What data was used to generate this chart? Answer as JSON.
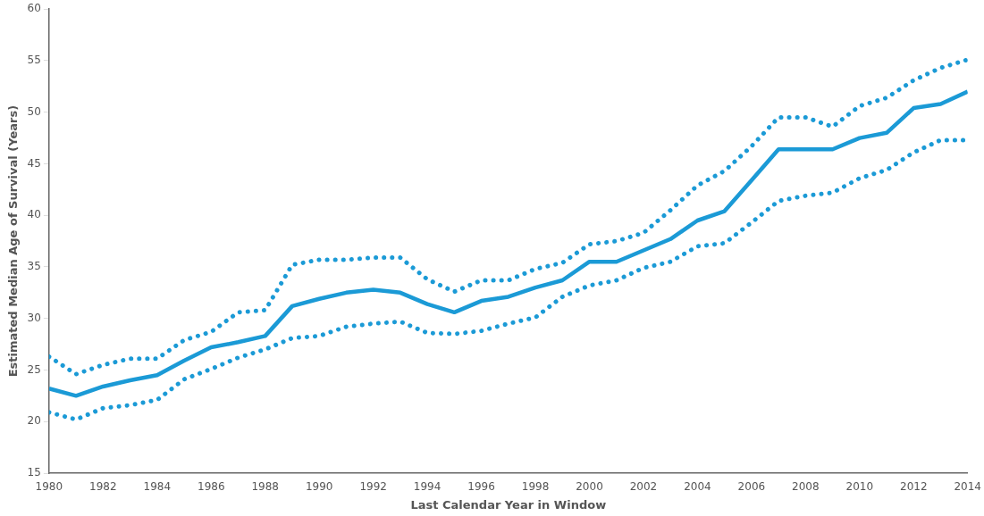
{
  "chart_data": {
    "type": "line",
    "xlabel": "Last Calendar Year in Window",
    "ylabel": "Estimated Median Age of Survival (Years)",
    "x": [
      1980,
      1981,
      1982,
      1983,
      1984,
      1985,
      1986,
      1987,
      1988,
      1989,
      1990,
      1991,
      1992,
      1993,
      1994,
      1995,
      1996,
      1997,
      1998,
      1999,
      2000,
      2001,
      2002,
      2003,
      2004,
      2005,
      2006,
      2007,
      2008,
      2009,
      2010,
      2011,
      2012,
      2013,
      2014
    ],
    "xlim": [
      1980,
      2014
    ],
    "xticks": [
      1980,
      1982,
      1984,
      1986,
      1988,
      1990,
      1992,
      1994,
      1996,
      1998,
      2000,
      2002,
      2004,
      2006,
      2008,
      2010,
      2012,
      2014
    ],
    "ylim": [
      15,
      60
    ],
    "yticks": [
      15,
      20,
      25,
      30,
      35,
      40,
      45,
      50,
      55,
      60
    ],
    "grid": false,
    "legend": false,
    "marker": "none",
    "series": [
      {
        "color": "#1b9ad6",
        "line_style": "solid",
        "values": [
          23.2,
          22.5,
          23.4,
          24.0,
          24.5,
          25.9,
          27.2,
          27.7,
          28.3,
          31.2,
          31.9,
          32.5,
          32.8,
          32.5,
          31.4,
          30.6,
          31.7,
          32.1,
          33.0,
          33.7,
          35.5,
          35.5,
          36.6,
          37.7,
          39.5,
          40.4,
          43.4,
          46.4,
          46.4,
          46.4,
          47.5,
          48.0,
          50.4,
          50.8,
          52.0
        ]
      },
      {
        "color": "#1b9ad6",
        "line_style": "dotted",
        "values": [
          26.3,
          24.6,
          25.5,
          26.1,
          26.1,
          27.9,
          28.7,
          30.6,
          30.8,
          35.2,
          35.7,
          35.7,
          35.9,
          35.9,
          33.8,
          32.6,
          33.7,
          33.7,
          34.8,
          35.4,
          37.2,
          37.5,
          38.3,
          40.5,
          42.9,
          44.3,
          46.7,
          49.5,
          49.5,
          48.6,
          50.6,
          51.4,
          53.1,
          54.3,
          55.1
        ]
      },
      {
        "color": "#1b9ad6",
        "line_style": "dotted",
        "values": [
          20.9,
          20.2,
          21.3,
          21.6,
          22.1,
          24.1,
          25.1,
          26.2,
          27.0,
          28.1,
          28.3,
          29.2,
          29.5,
          29.7,
          28.6,
          28.5,
          28.8,
          29.5,
          30.1,
          32.1,
          33.2,
          33.7,
          34.9,
          35.5,
          37.0,
          37.3,
          39.3,
          41.4,
          41.9,
          42.2,
          43.6,
          44.4,
          46.1,
          47.3,
          47.3
        ]
      }
    ]
  }
}
